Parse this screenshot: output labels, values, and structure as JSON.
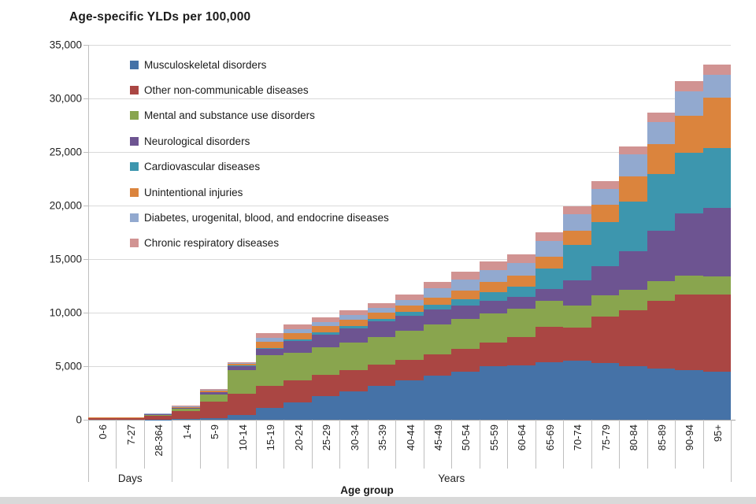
{
  "title": "Age-specific YLDs per 100,000",
  "y_axis": {
    "tick_labels": [
      "0",
      "5,000",
      "10,000",
      "15,000",
      "20,000",
      "25,000",
      "30,000",
      "35,000"
    ],
    "max": 35000,
    "tick_step": 5000
  },
  "x_axis": {
    "title": "Age group",
    "groups": [
      {
        "label": "Days",
        "span": 3
      },
      {
        "label": "Years",
        "span": 20
      }
    ]
  },
  "chart_data": {
    "type": "bar",
    "stacked": true,
    "grid": true,
    "legend_position": "top-left-inside",
    "title": "Age-specific YLDs per 100,000",
    "xlabel": "Age group",
    "ylabel": "",
    "ylim": [
      0,
      35000
    ],
    "categories": [
      "0-6",
      "7-27",
      "28-364",
      "1-4",
      "5-9",
      "10-14",
      "15-19",
      "20-24",
      "25-29",
      "30-34",
      "35-39",
      "40-44",
      "45-49",
      "50-54",
      "55-59",
      "60-64",
      "65-69",
      "70-74",
      "75-79",
      "80-84",
      "85-89",
      "90-94",
      "95+"
    ],
    "series": [
      {
        "name": "Musculoskeletal disorders",
        "color": "#4572A7",
        "values": [
          0,
          0,
          20,
          60,
          160,
          450,
          1100,
          1600,
          2180,
          2670,
          3160,
          3650,
          4140,
          4510,
          5000,
          5100,
          5400,
          5500,
          5300,
          5000,
          4800,
          4600,
          4500
        ]
      },
      {
        "name": "Other non-communicable diseases",
        "color": "#AA4643",
        "values": [
          160,
          160,
          380,
          760,
          1500,
          1950,
          2080,
          2080,
          1990,
          1960,
          1960,
          1960,
          1990,
          2080,
          2200,
          2600,
          3300,
          3100,
          4300,
          5200,
          6300,
          7100,
          7200
        ]
      },
      {
        "name": "Mental and substance use disorders",
        "color": "#89A54E",
        "values": [
          0,
          0,
          80,
          200,
          700,
          2250,
          2850,
          2600,
          2570,
          2570,
          2570,
          2700,
          2800,
          2800,
          2750,
          2650,
          2400,
          2100,
          2050,
          1950,
          1850,
          1750,
          1650
        ]
      },
      {
        "name": "Neurological disorders",
        "color": "#6D5491",
        "values": [
          0,
          0,
          20,
          80,
          190,
          380,
          620,
          1100,
          1230,
          1350,
          1470,
          1420,
          1350,
          1250,
          1180,
          1120,
          1100,
          2300,
          2700,
          3600,
          4700,
          5800,
          6450
        ]
      },
      {
        "name": "Cardiovascular diseases",
        "color": "#3D96AE",
        "values": [
          0,
          0,
          0,
          0,
          0,
          30,
          80,
          120,
          180,
          220,
          260,
          330,
          450,
          600,
          820,
          980,
          1900,
          3300,
          4100,
          4600,
          5300,
          5700,
          5600
        ]
      },
      {
        "name": "Unintentional injuries",
        "color": "#DB843D",
        "values": [
          30,
          30,
          50,
          100,
          140,
          160,
          560,
          610,
          610,
          610,
          610,
          620,
          700,
          830,
          950,
          980,
          1100,
          1350,
          1600,
          2400,
          2800,
          3400,
          4700
        ]
      },
      {
        "name": "Diabetes, urogenital, blood, and endocrine diseases",
        "color": "#92A9CF",
        "values": [
          30,
          30,
          30,
          60,
          100,
          80,
          350,
          340,
          360,
          400,
          420,
          520,
          840,
          1000,
          1080,
          1200,
          1500,
          1550,
          1500,
          2000,
          2050,
          2300,
          2100
        ]
      },
      {
        "name": "Chronic respiratory diseases",
        "color": "#D19392",
        "values": [
          30,
          30,
          20,
          60,
          80,
          70,
          450,
          450,
          440,
          440,
          430,
          490,
          600,
          750,
          800,
          810,
          800,
          730,
          730,
          760,
          880,
          970,
          960
        ]
      }
    ],
    "totals": [
      250,
      250,
      600,
      1320,
      2870,
      5370,
      8090,
      8900,
      9560,
      10220,
      10880,
      11690,
      12870,
      13820,
      14780,
      15440,
      17500,
      19930,
      22280,
      25510,
      28680,
      31620,
      33160
    ]
  },
  "style": {
    "gridline": "#D9D9D9",
    "axis_line": "#A6A6A6",
    "tick_line": "#BFBFBF",
    "text": "#1F1F1F",
    "bottom_bar": "#D9D9D9"
  }
}
